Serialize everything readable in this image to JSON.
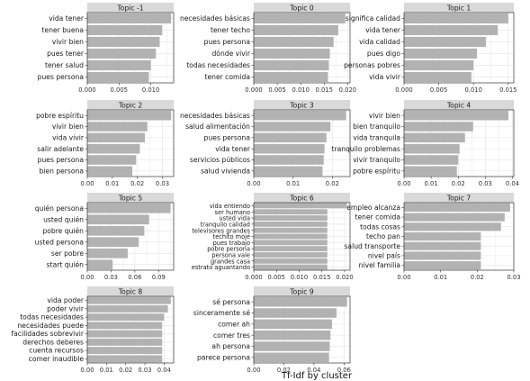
{
  "colors": {
    "bar": "#b2b2b2",
    "strip": "#d9d9d9",
    "panel_border": "#333333",
    "grid": "#e8e8e8",
    "background": "#ffffff"
  },
  "chart_data": {
    "type": "bar",
    "orientation": "horizontal",
    "xlabel": "Tf-Idf by cluster",
    "grid": true,
    "panels": [
      {
        "title": "Topic -1",
        "categories": [
          "vida tener",
          "tener buena",
          "vivir bien",
          "pues tener",
          "tener salud",
          "pues persona"
        ],
        "values": [
          0.0132,
          0.0118,
          0.0114,
          0.0108,
          0.01,
          0.0097
        ],
        "xlim": [
          0,
          0.0136
        ],
        "ticks": [
          0,
          0.005,
          0.01
        ],
        "tick_labels": [
          "0.000",
          "0.005",
          "0.010"
        ]
      },
      {
        "title": "Topic 0",
        "categories": [
          "necesidades básicas",
          "tener techo",
          "pues persona",
          "dónde vivir",
          "todas necesidades",
          "tener comida"
        ],
        "values": [
          0.0195,
          0.018,
          0.017,
          0.0162,
          0.016,
          0.0158
        ],
        "xlim": [
          0,
          0.0205
        ],
        "ticks": [
          0,
          0.005,
          0.01,
          0.015,
          0.02
        ],
        "tick_labels": [
          "0.000",
          "0.005",
          "0.010",
          "0.015",
          "0.020"
        ]
      },
      {
        "title": "Topic 1",
        "categories": [
          "significa calidad",
          "vida tener",
          "vida calidad",
          "pues digo",
          "personas pobres",
          "vida vivir"
        ],
        "values": [
          0.015,
          0.0135,
          0.0118,
          0.0105,
          0.01,
          0.0097
        ],
        "xlim": [
          0,
          0.0158
        ],
        "ticks": [
          0,
          0.005,
          0.01,
          0.015
        ],
        "tick_labels": [
          "0.000",
          "0.005",
          "0.010",
          "0.015"
        ]
      },
      {
        "title": "Topic 2",
        "categories": [
          "pobre espíritu",
          "vivir bien",
          "vida vivir",
          "salir adelante",
          "pues persona",
          "bien persona"
        ],
        "values": [
          0.0335,
          0.024,
          0.023,
          0.021,
          0.0195,
          0.018
        ],
        "xlim": [
          0,
          0.0345
        ],
        "ticks": [
          0,
          0.01,
          0.02,
          0.03
        ],
        "tick_labels": [
          "0.00",
          "0.01",
          "0.02",
          "0.03"
        ]
      },
      {
        "title": "Topic 3",
        "categories": [
          "necesidades básicas",
          "salud alimentación",
          "pues persona",
          "vida tener",
          "servicios públicos",
          "salud vivienda"
        ],
        "values": [
          0.0235,
          0.0195,
          0.0185,
          0.018,
          0.0178,
          0.0175
        ],
        "xlim": [
          0,
          0.0245
        ],
        "ticks": [
          0,
          0.01,
          0.02
        ],
        "tick_labels": [
          "0.00",
          "0.01",
          "0.02"
        ]
      },
      {
        "title": "Topic 4",
        "categories": [
          "vivir bien",
          "bien tranquilo",
          "vida tranquila",
          "tranquilo problemas",
          "vivir tranquilo",
          "pobre espíritu"
        ],
        "values": [
          0.0385,
          0.0255,
          0.0225,
          0.0205,
          0.02,
          0.0195
        ],
        "xlim": [
          0,
          0.0405
        ],
        "ticks": [
          0,
          0.01,
          0.02,
          0.03,
          0.04
        ],
        "tick_labels": [
          "0.00",
          "0.01",
          "0.02",
          "0.03",
          "0.04"
        ]
      },
      {
        "title": "Topic 5",
        "categories": [
          "quién persona",
          "usted quién",
          "pobre quién",
          "usted persona",
          "ser pobre",
          "start quién"
        ],
        "values": [
          0.105,
          0.078,
          0.072,
          0.065,
          0.051,
          0.032
        ],
        "xlim": [
          0,
          0.109
        ],
        "ticks": [
          0,
          0.03,
          0.06,
          0.09
        ],
        "tick_labels": [
          "0.00",
          "0.03",
          "0.06",
          "0.09"
        ]
      },
      {
        "title": "Topic 6",
        "categories": [
          "vida entiendo",
          "ser humano",
          "usted vida",
          "tranquilo calidad",
          "televisores grandes",
          "techito mojé",
          "pues trabajo",
          "pobre persona",
          "persona vale",
          "grandes casa",
          "estrato aguantando"
        ],
        "values": [
          0.0205,
          0.0162,
          0.0162,
          0.0162,
          0.0162,
          0.0162,
          0.0162,
          0.0162,
          0.0162,
          0.0162,
          0.0162
        ],
        "xlim": [
          0,
          0.0212
        ],
        "ticks": [
          0,
          0.005,
          0.01,
          0.015,
          0.02
        ],
        "tick_labels": [
          "0.000",
          "0.005",
          "0.010",
          "0.015",
          "0.020"
        ]
      },
      {
        "title": "Topic 7",
        "categories": [
          "empleo alcanza",
          "tener comida",
          "todas cosas",
          "techo pan",
          "salud transporte",
          "nivel país",
          "nivel familia"
        ],
        "values": [
          0.029,
          0.0275,
          0.0265,
          0.021,
          0.021,
          0.021,
          0.021
        ],
        "xlim": [
          0,
          0.03
        ],
        "ticks": [
          0,
          0.01,
          0.02,
          0.03
        ],
        "tick_labels": [
          "0.00",
          "0.01",
          "0.02",
          "0.03"
        ]
      },
      {
        "title": "Topic 8",
        "categories": [
          "vida poder",
          "poder vivir",
          "todas necesidades",
          "necesidades puede",
          "facilidades sobrevivir",
          "derechos deberes",
          "cuenta recursos",
          "comer inaudible"
        ],
        "values": [
          0.0435,
          0.042,
          0.04,
          0.039,
          0.039,
          0.039,
          0.039,
          0.039
        ],
        "xlim": [
          0,
          0.045
        ],
        "ticks": [
          0,
          0.01,
          0.02,
          0.03,
          0.04
        ],
        "tick_labels": [
          "0.00",
          "0.01",
          "0.02",
          "0.03",
          "0.04"
        ]
      },
      {
        "title": "Topic 9",
        "categories": [
          "sé persona",
          "sinceramente sé",
          "comer ah",
          "comer tres",
          "ah persona",
          "parece persona"
        ],
        "values": [
          0.062,
          0.055,
          0.052,
          0.051,
          0.0505,
          0.05
        ],
        "xlim": [
          0,
          0.064
        ],
        "ticks": [
          0,
          0.02,
          0.04,
          0.06
        ],
        "tick_labels": [
          "0.00",
          "0.02",
          "0.04",
          "0.06"
        ]
      }
    ]
  }
}
